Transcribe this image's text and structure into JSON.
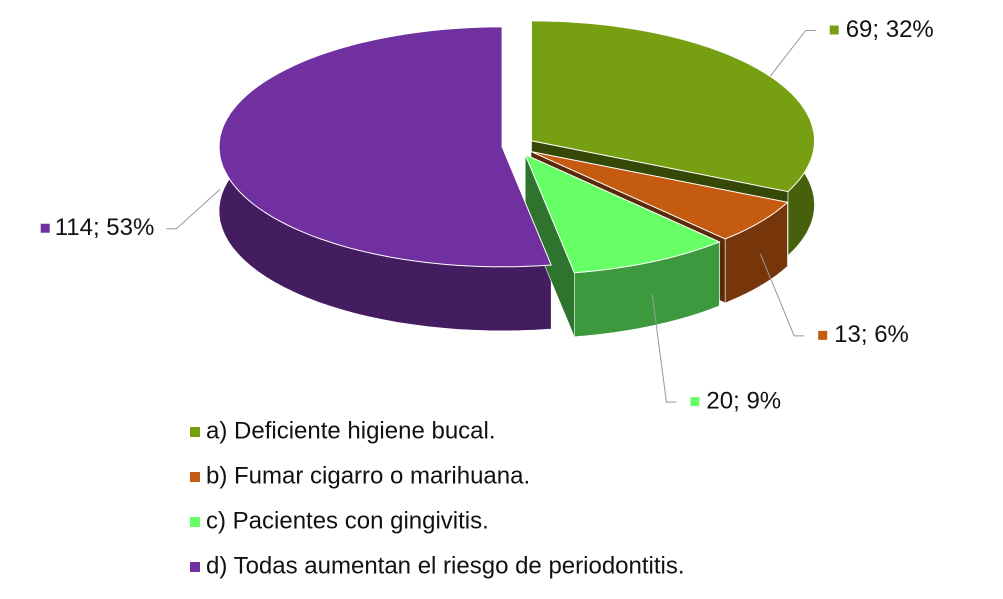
{
  "chart_data": {
    "type": "pie",
    "categories": [
      "a) Deficiente higiene bucal.",
      "b) Fumar cigarro o marihuana.",
      "c) Pacientes con gingivitis.",
      "d) Todas aumentan el riesgo de periodontitis."
    ],
    "values": [
      69,
      13,
      20,
      114
    ],
    "value_labels": [
      "69; 32%",
      "13; 6%",
      "20; 9%",
      "114; 53%"
    ],
    "colors": [
      "#76a012",
      "#c55a11",
      "#66ff66",
      "#7030a0"
    ],
    "legend": "bottom"
  }
}
